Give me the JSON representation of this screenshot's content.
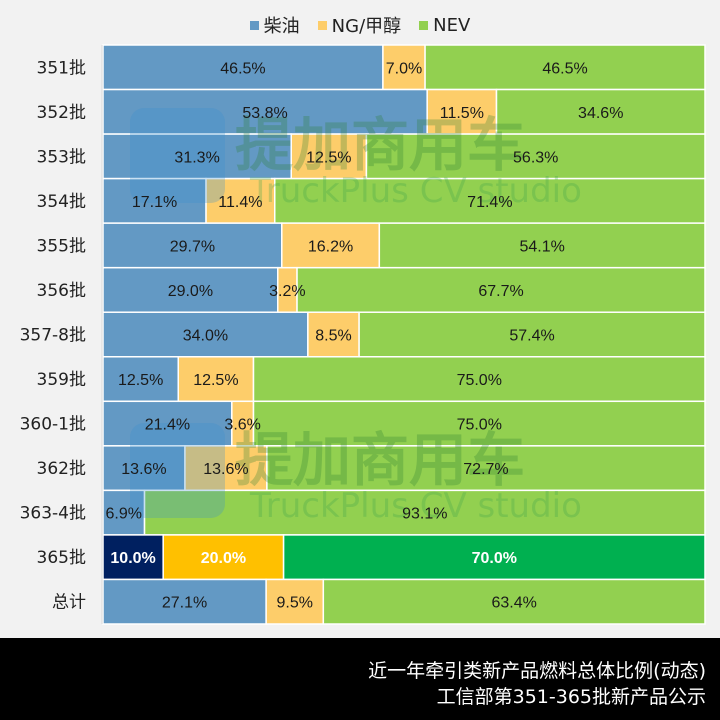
{
  "chart_data": {
    "type": "bar",
    "orientation": "horizontal",
    "stacked": true,
    "normalized_percent": true,
    "title": "",
    "xlabel": "",
    "ylabel": "",
    "xlim": [
      0,
      100
    ],
    "grid": false,
    "legend_position": "top",
    "categories": [
      "351批",
      "352批",
      "353批",
      "354批",
      "355批",
      "356批",
      "357-8批",
      "359批",
      "360-1批",
      "362批",
      "363-4批",
      "365批",
      "总计"
    ],
    "series": [
      {
        "name": "柴油",
        "color": "#6399c4",
        "values": [
          46.5,
          53.8,
          31.3,
          17.1,
          29.7,
          29.0,
          34.0,
          12.5,
          21.4,
          13.6,
          6.9,
          10.0,
          27.1
        ],
        "labels": [
          "46.5%",
          "53.8%",
          "31.3%",
          "17.1%",
          "29.7%",
          "29.0%",
          "34.0%",
          "12.5%",
          "21.4%",
          "13.6%",
          "6.9%",
          "10.0%",
          "27.1%"
        ]
      },
      {
        "name": "NG/甲醇",
        "color": "#fdcd6a",
        "values": [
          7.0,
          11.5,
          12.5,
          11.4,
          16.2,
          3.2,
          8.5,
          12.5,
          3.6,
          13.6,
          0,
          20.0,
          9.5
        ],
        "labels": [
          "7.0%",
          "11.5%",
          "12.5%",
          "11.4%",
          "16.2%",
          "3.2%",
          "8.5%",
          "12.5%",
          "3.6%",
          "13.6%",
          "",
          "20.0%",
          "9.5%"
        ]
      },
      {
        "name": "NEV",
        "color": "#92d050",
        "values": [
          46.5,
          34.6,
          56.3,
          71.4,
          54.1,
          67.7,
          57.4,
          75.0,
          75.0,
          72.7,
          93.1,
          70.0,
          63.4
        ],
        "labels": [
          "46.5%",
          "34.6%",
          "56.3%",
          "71.4%",
          "54.1%",
          "67.7%",
          "57.4%",
          "75.0%",
          "75.0%",
          "72.7%",
          "93.1%",
          "70.0%",
          "63.4%"
        ]
      }
    ],
    "highlight": {
      "category": "365批",
      "colors": [
        "#002060",
        "#ffc000",
        "#00b050"
      ],
      "label_color": "#ffffff"
    }
  },
  "watermark": {
    "cn": "提加商用车",
    "en": "TruckPlus CV studio"
  },
  "footer": {
    "line1": "近一年牵引类新产品燃料总体比例(动态)",
    "line2": "工信部第351-365批新产品公示"
  }
}
